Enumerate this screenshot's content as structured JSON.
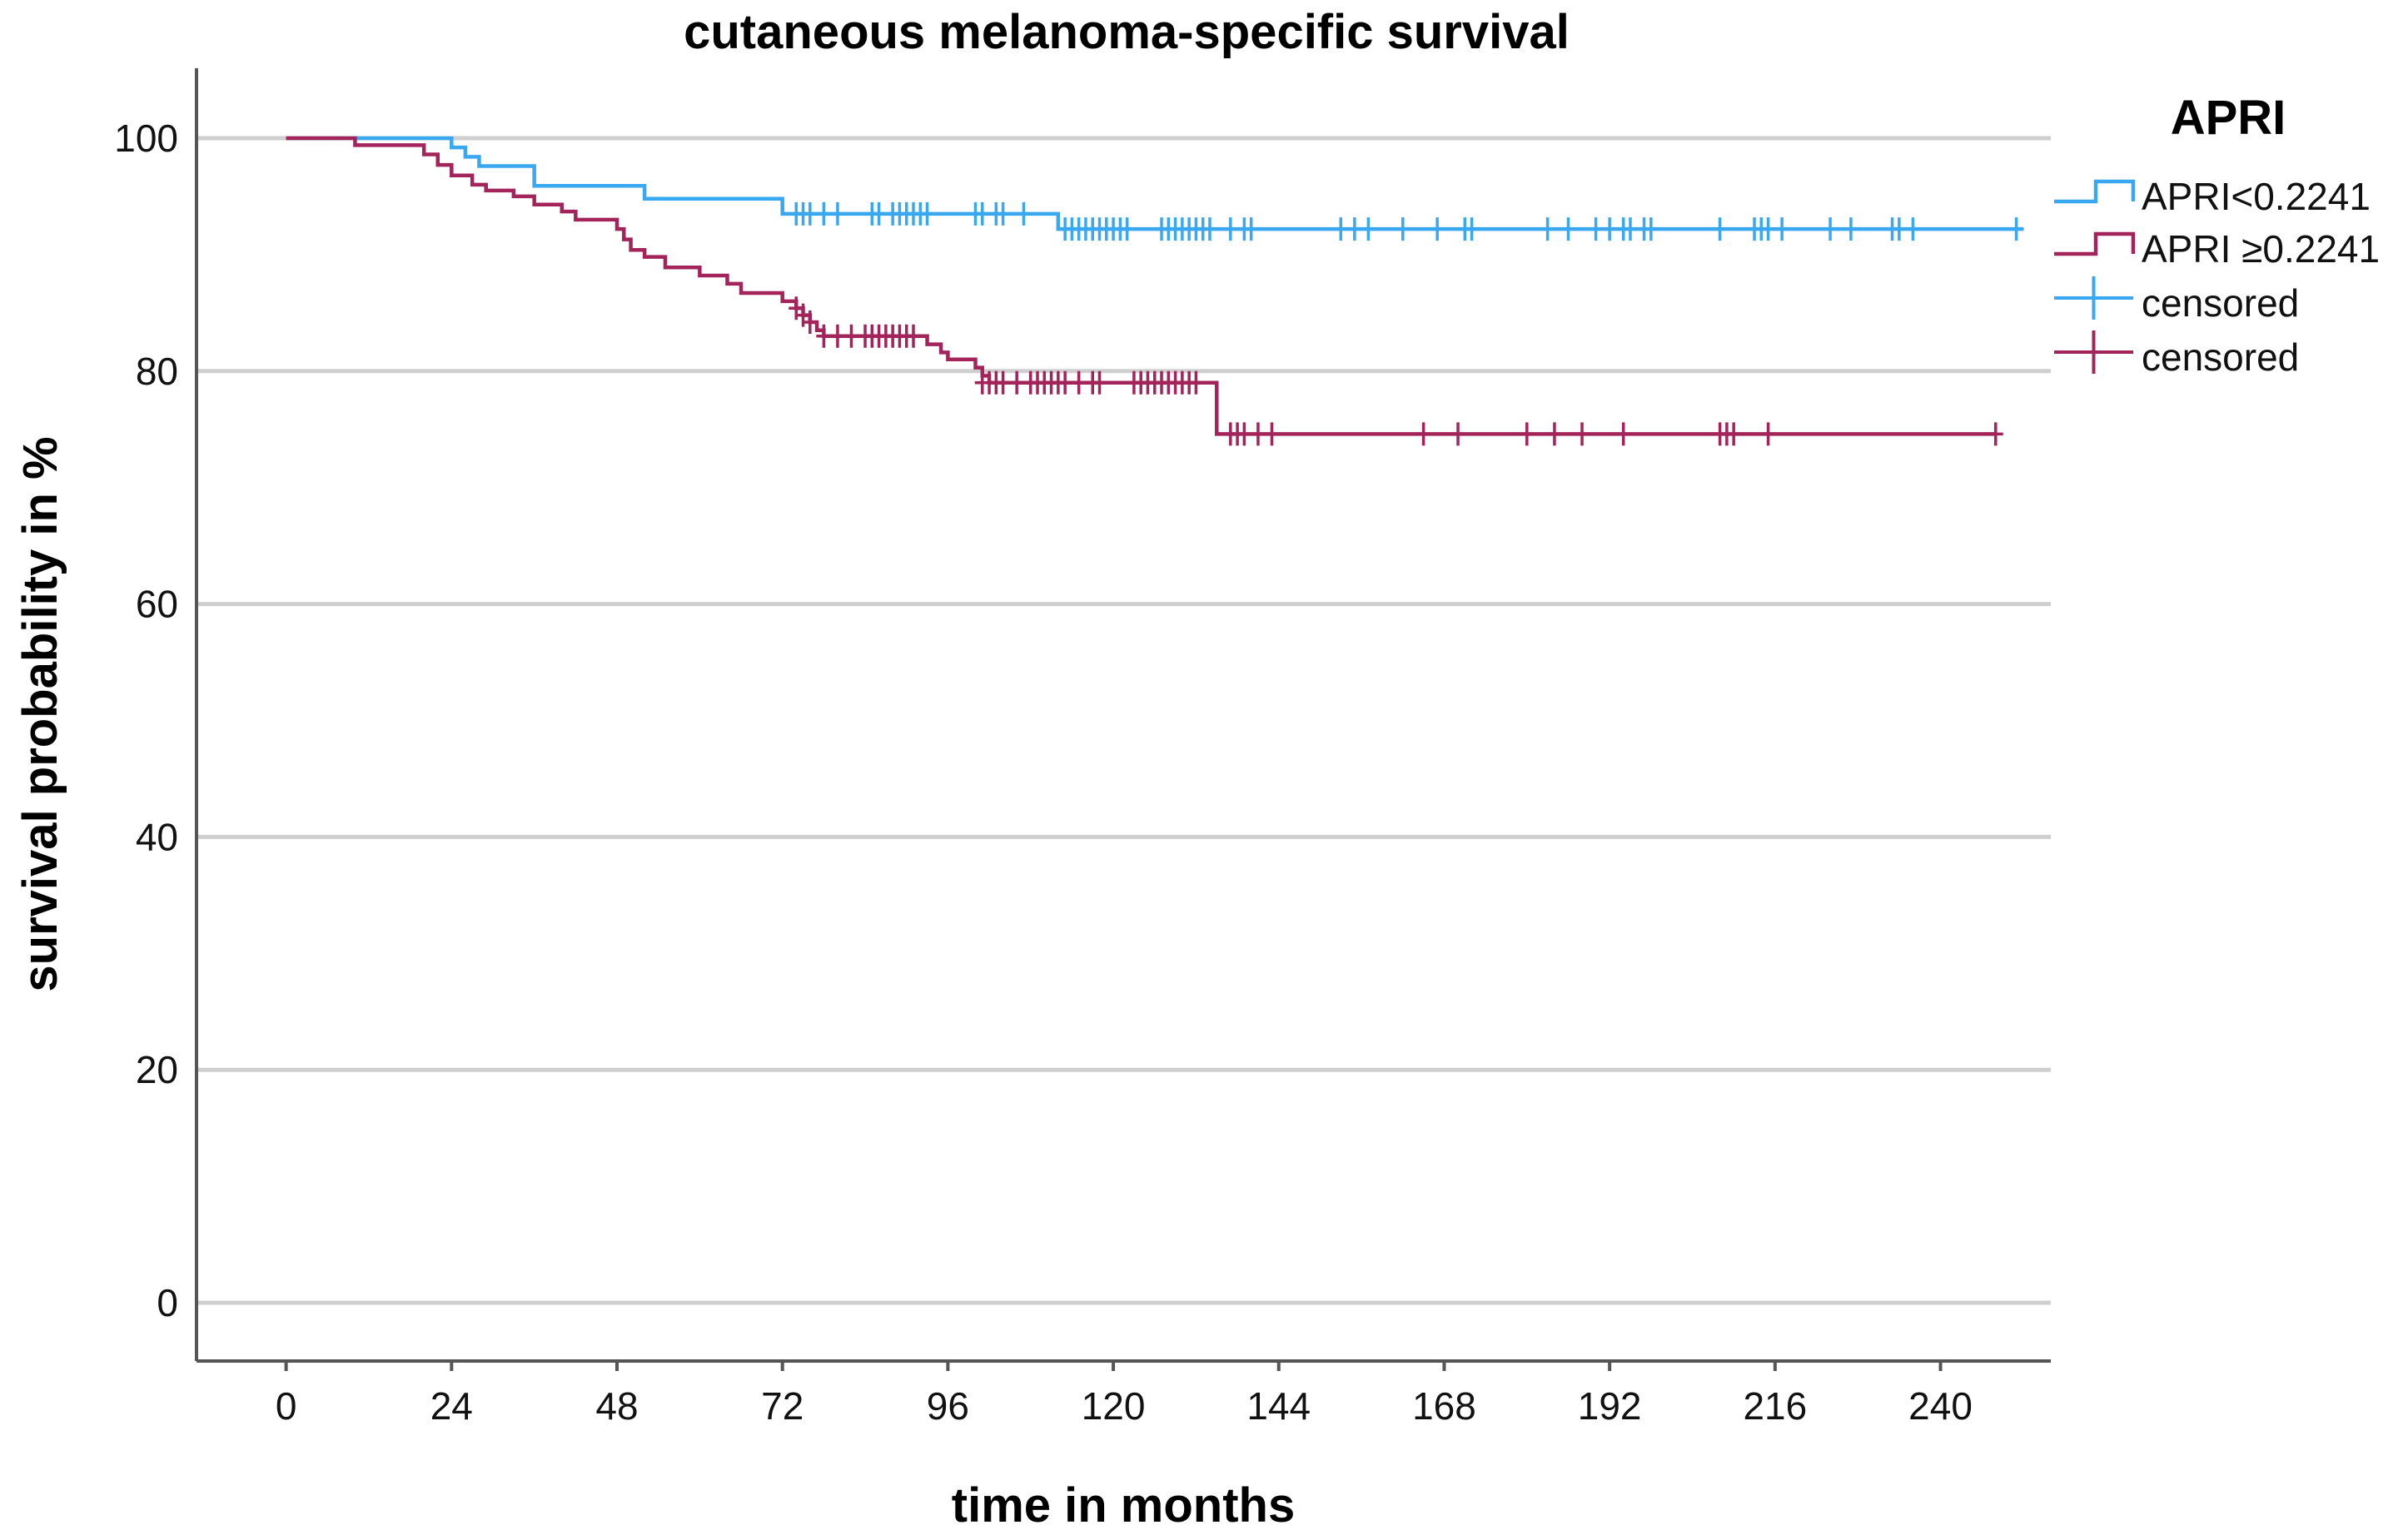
{
  "chart_data": {
    "type": "line",
    "subtype": "kaplan-meier",
    "title": "cutaneous melanoma-specific survival",
    "xlabel": "time in months",
    "ylabel": "survival probability in %",
    "xlim": [
      -13,
      256
    ],
    "ylim": [
      -5,
      106
    ],
    "xticks": [
      0,
      24,
      48,
      72,
      96,
      120,
      144,
      168,
      192,
      216,
      240
    ],
    "yticks": [
      0,
      20,
      40,
      60,
      80,
      100
    ],
    "grid": true,
    "legend": {
      "title": "APRI",
      "position": "top-right",
      "entries": [
        "APRI<0.2241",
        "APRI ≥0.2241",
        "censored",
        "censored"
      ]
    },
    "series": [
      {
        "name": "APRI<0.2241",
        "color": "#3aa8f0",
        "steps": [
          [
            0,
            100
          ],
          [
            24,
            100
          ],
          [
            24,
            99.2
          ],
          [
            26,
            98.4
          ],
          [
            28,
            97.6
          ],
          [
            36,
            96.8
          ],
          [
            36,
            95.9
          ],
          [
            52,
            95.1
          ],
          [
            52,
            94.8
          ],
          [
            72,
            94.0
          ],
          [
            72,
            93.5
          ],
          [
            112,
            92.7
          ],
          [
            112,
            92.2
          ],
          [
            252,
            92.2
          ]
        ],
        "censored": [
          [
            74,
            93.5
          ],
          [
            75,
            93.5
          ],
          [
            76,
            93.5
          ],
          [
            78,
            93.5
          ],
          [
            80,
            93.5
          ],
          [
            85,
            93.5
          ],
          [
            86,
            93.5
          ],
          [
            88,
            93.5
          ],
          [
            89,
            93.5
          ],
          [
            90,
            93.5
          ],
          [
            91,
            93.5
          ],
          [
            92,
            93.5
          ],
          [
            93,
            93.5
          ],
          [
            100,
            93.5
          ],
          [
            101,
            93.5
          ],
          [
            103,
            93.5
          ],
          [
            104,
            93.5
          ],
          [
            107,
            93.5
          ],
          [
            113,
            92.2
          ],
          [
            114,
            92.2
          ],
          [
            115,
            92.2
          ],
          [
            116,
            92.2
          ],
          [
            117,
            92.2
          ],
          [
            118,
            92.2
          ],
          [
            119,
            92.2
          ],
          [
            120,
            92.2
          ],
          [
            121,
            92.2
          ],
          [
            122,
            92.2
          ],
          [
            127,
            92.2
          ],
          [
            128,
            92.2
          ],
          [
            129,
            92.2
          ],
          [
            130,
            92.2
          ],
          [
            131,
            92.2
          ],
          [
            132,
            92.2
          ],
          [
            133,
            92.2
          ],
          [
            134,
            92.2
          ],
          [
            137,
            92.2
          ],
          [
            139,
            92.2
          ],
          [
            140,
            92.2
          ],
          [
            153,
            92.2
          ],
          [
            155,
            92.2
          ],
          [
            157,
            92.2
          ],
          [
            162,
            92.2
          ],
          [
            167,
            92.2
          ],
          [
            171,
            92.2
          ],
          [
            172,
            92.2
          ],
          [
            183,
            92.2
          ],
          [
            186,
            92.2
          ],
          [
            190,
            92.2
          ],
          [
            192,
            92.2
          ],
          [
            194,
            92.2
          ],
          [
            195,
            92.2
          ],
          [
            197,
            92.2
          ],
          [
            198,
            92.2
          ],
          [
            208,
            92.2
          ],
          [
            213,
            92.2
          ],
          [
            214,
            92.2
          ],
          [
            215,
            92.2
          ],
          [
            217,
            92.2
          ],
          [
            224,
            92.2
          ],
          [
            227,
            92.2
          ],
          [
            233,
            92.2
          ],
          [
            234,
            92.2
          ],
          [
            236,
            92.2
          ],
          [
            251,
            92.2
          ]
        ]
      },
      {
        "name": "APRI ≥0.2241",
        "color": "#a3245a",
        "steps": [
          [
            0,
            100
          ],
          [
            10,
            100
          ],
          [
            10,
            99.4
          ],
          [
            20,
            99.4
          ],
          [
            20,
            98.6
          ],
          [
            22,
            97.7
          ],
          [
            24,
            96.8
          ],
          [
            27,
            96.0
          ],
          [
            29,
            95.5
          ],
          [
            33,
            95.0
          ],
          [
            36,
            94.3
          ],
          [
            40,
            93.7
          ],
          [
            42,
            93.0
          ],
          [
            46,
            93.0
          ],
          [
            48,
            92.2
          ],
          [
            49,
            91.3
          ],
          [
            50,
            90.4
          ],
          [
            52,
            89.8
          ],
          [
            55,
            88.9
          ],
          [
            60,
            88.2
          ],
          [
            64,
            87.5
          ],
          [
            66,
            86.7
          ],
          [
            72,
            86.7
          ],
          [
            72,
            86.0
          ],
          [
            74,
            85.4
          ],
          [
            75,
            84.8
          ],
          [
            76,
            84.2
          ],
          [
            77,
            83.5
          ],
          [
            78,
            83.0
          ],
          [
            92,
            83.0
          ],
          [
            93,
            82.3
          ],
          [
            95,
            81.6
          ],
          [
            96,
            81.0
          ],
          [
            100,
            80.3
          ],
          [
            101,
            79.6
          ],
          [
            102,
            79.0
          ],
          [
            133,
            79.0
          ],
          [
            135,
            74.6
          ],
          [
            248,
            74.6
          ]
        ],
        "censored": [
          [
            74,
            85.4
          ],
          [
            75,
            84.8
          ],
          [
            76,
            84.2
          ],
          [
            78,
            83.0
          ],
          [
            80,
            83.0
          ],
          [
            82,
            83.0
          ],
          [
            84,
            83.0
          ],
          [
            85,
            83.0
          ],
          [
            86,
            83.0
          ],
          [
            87,
            83.0
          ],
          [
            88,
            83.0
          ],
          [
            89,
            83.0
          ],
          [
            90,
            83.0
          ],
          [
            91,
            83.0
          ],
          [
            101,
            79.0
          ],
          [
            102,
            79.0
          ],
          [
            103,
            79.0
          ],
          [
            104,
            79.0
          ],
          [
            106,
            79.0
          ],
          [
            108,
            79.0
          ],
          [
            109,
            79.0
          ],
          [
            110,
            79.0
          ],
          [
            111,
            79.0
          ],
          [
            112,
            79.0
          ],
          [
            113,
            79.0
          ],
          [
            115,
            79.0
          ],
          [
            117,
            79.0
          ],
          [
            118,
            79.0
          ],
          [
            123,
            79.0
          ],
          [
            124,
            79.0
          ],
          [
            125,
            79.0
          ],
          [
            126,
            79.0
          ],
          [
            127,
            79.0
          ],
          [
            128,
            79.0
          ],
          [
            129,
            79.0
          ],
          [
            130,
            79.0
          ],
          [
            131,
            79.0
          ],
          [
            132,
            79.0
          ],
          [
            137,
            74.6
          ],
          [
            138,
            74.6
          ],
          [
            139,
            74.6
          ],
          [
            141,
            74.6
          ],
          [
            143,
            74.6
          ],
          [
            165,
            74.6
          ],
          [
            170,
            74.6
          ],
          [
            180,
            74.6
          ],
          [
            184,
            74.6
          ],
          [
            188,
            74.6
          ],
          [
            194,
            74.6
          ],
          [
            208,
            74.6
          ],
          [
            209,
            74.6
          ],
          [
            210,
            74.6
          ],
          [
            215,
            74.6
          ],
          [
            248,
            74.6
          ]
        ]
      }
    ]
  }
}
